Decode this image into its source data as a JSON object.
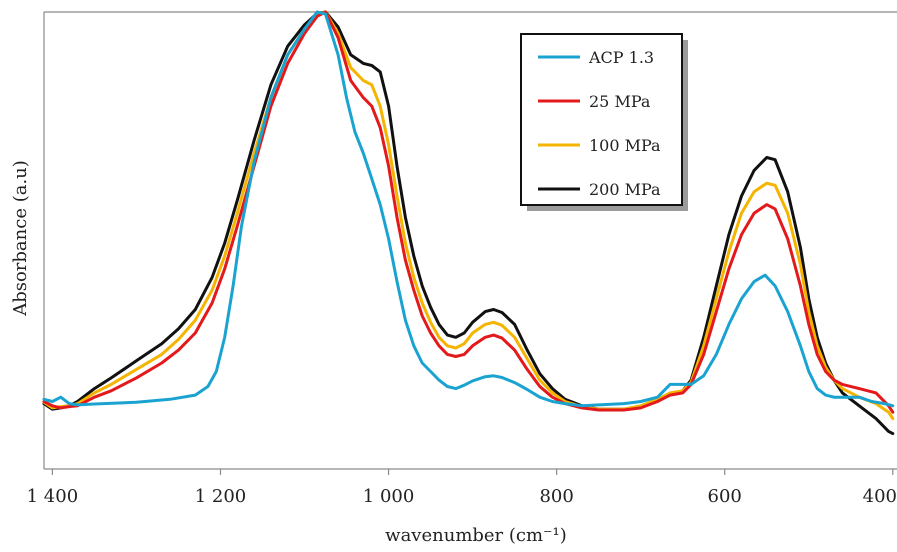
{
  "chart_data": {
    "type": "line",
    "title": "",
    "xlabel": "wavenumber (cm⁻¹)",
    "ylabel": "Absorbance (a.u)",
    "xlim": [
      1410,
      395
    ],
    "ylim": [
      0,
      1
    ],
    "x_reversed": true,
    "x_ticks": [
      1400,
      1200,
      1000,
      800,
      600,
      400
    ],
    "x_tick_labels": [
      "1 400",
      "1 200",
      "1 000",
      "800",
      "600",
      "400"
    ],
    "grid": false,
    "legend_placement": "top-right",
    "series": [
      {
        "name": "ACP 1.3",
        "color": "#1aa3d1",
        "points": [
          [
            1410,
            0.095
          ],
          [
            1400,
            0.09
          ],
          [
            1390,
            0.1
          ],
          [
            1380,
            0.085
          ],
          [
            1370,
            0.082
          ],
          [
            1350,
            0.084
          ],
          [
            1300,
            0.088
          ],
          [
            1260,
            0.095
          ],
          [
            1230,
            0.105
          ],
          [
            1215,
            0.125
          ],
          [
            1205,
            0.16
          ],
          [
            1195,
            0.24
          ],
          [
            1185,
            0.36
          ],
          [
            1175,
            0.5
          ],
          [
            1160,
            0.65
          ],
          [
            1140,
            0.8
          ],
          [
            1120,
            0.9
          ],
          [
            1100,
            0.96
          ],
          [
            1085,
            1.0
          ],
          [
            1075,
            0.995
          ],
          [
            1060,
            0.9
          ],
          [
            1050,
            0.8
          ],
          [
            1040,
            0.72
          ],
          [
            1030,
            0.67
          ],
          [
            1020,
            0.61
          ],
          [
            1010,
            0.55
          ],
          [
            1000,
            0.47
          ],
          [
            990,
            0.37
          ],
          [
            980,
            0.28
          ],
          [
            970,
            0.22
          ],
          [
            960,
            0.18
          ],
          [
            950,
            0.16
          ],
          [
            940,
            0.14
          ],
          [
            930,
            0.125
          ],
          [
            920,
            0.12
          ],
          [
            910,
            0.128
          ],
          [
            900,
            0.138
          ],
          [
            885,
            0.148
          ],
          [
            875,
            0.15
          ],
          [
            865,
            0.146
          ],
          [
            850,
            0.134
          ],
          [
            835,
            0.118
          ],
          [
            820,
            0.1
          ],
          [
            805,
            0.09
          ],
          [
            790,
            0.085
          ],
          [
            770,
            0.08
          ],
          [
            750,
            0.082
          ],
          [
            720,
            0.085
          ],
          [
            700,
            0.09
          ],
          [
            680,
            0.1
          ],
          [
            665,
            0.13
          ],
          [
            655,
            0.13
          ],
          [
            640,
            0.13
          ],
          [
            625,
            0.15
          ],
          [
            610,
            0.2
          ],
          [
            595,
            0.27
          ],
          [
            580,
            0.33
          ],
          [
            565,
            0.37
          ],
          [
            552,
            0.385
          ],
          [
            540,
            0.36
          ],
          [
            525,
            0.3
          ],
          [
            510,
            0.22
          ],
          [
            500,
            0.16
          ],
          [
            490,
            0.12
          ],
          [
            480,
            0.105
          ],
          [
            470,
            0.1
          ],
          [
            460,
            0.1
          ],
          [
            440,
            0.1
          ],
          [
            425,
            0.09
          ],
          [
            410,
            0.085
          ],
          [
            400,
            0.08
          ]
        ]
      },
      {
        "name": "25 MPa",
        "color": "#e3191c",
        "points": [
          [
            1410,
            0.09
          ],
          [
            1400,
            0.08
          ],
          [
            1390,
            0.075
          ],
          [
            1380,
            0.078
          ],
          [
            1370,
            0.08
          ],
          [
            1350,
            0.1
          ],
          [
            1330,
            0.115
          ],
          [
            1300,
            0.145
          ],
          [
            1270,
            0.18
          ],
          [
            1250,
            0.21
          ],
          [
            1230,
            0.25
          ],
          [
            1210,
            0.32
          ],
          [
            1195,
            0.4
          ],
          [
            1180,
            0.5
          ],
          [
            1160,
            0.64
          ],
          [
            1140,
            0.78
          ],
          [
            1120,
            0.88
          ],
          [
            1100,
            0.95
          ],
          [
            1085,
            0.99
          ],
          [
            1075,
            1.0
          ],
          [
            1060,
            0.94
          ],
          [
            1045,
            0.84
          ],
          [
            1030,
            0.8
          ],
          [
            1020,
            0.78
          ],
          [
            1010,
            0.73
          ],
          [
            1000,
            0.64
          ],
          [
            990,
            0.52
          ],
          [
            980,
            0.42
          ],
          [
            970,
            0.35
          ],
          [
            960,
            0.29
          ],
          [
            950,
            0.25
          ],
          [
            940,
            0.22
          ],
          [
            930,
            0.2
          ],
          [
            920,
            0.195
          ],
          [
            910,
            0.2
          ],
          [
            900,
            0.22
          ],
          [
            885,
            0.24
          ],
          [
            875,
            0.245
          ],
          [
            865,
            0.238
          ],
          [
            850,
            0.21
          ],
          [
            835,
            0.165
          ],
          [
            820,
            0.125
          ],
          [
            805,
            0.1
          ],
          [
            790,
            0.085
          ],
          [
            770,
            0.075
          ],
          [
            750,
            0.07
          ],
          [
            720,
            0.07
          ],
          [
            700,
            0.075
          ],
          [
            680,
            0.09
          ],
          [
            665,
            0.105
          ],
          [
            650,
            0.11
          ],
          [
            640,
            0.13
          ],
          [
            625,
            0.2
          ],
          [
            610,
            0.3
          ],
          [
            595,
            0.4
          ],
          [
            580,
            0.48
          ],
          [
            565,
            0.53
          ],
          [
            550,
            0.55
          ],
          [
            540,
            0.54
          ],
          [
            525,
            0.47
          ],
          [
            510,
            0.36
          ],
          [
            500,
            0.27
          ],
          [
            490,
            0.2
          ],
          [
            480,
            0.16
          ],
          [
            470,
            0.14
          ],
          [
            460,
            0.13
          ],
          [
            440,
            0.12
          ],
          [
            420,
            0.11
          ],
          [
            405,
            0.08
          ],
          [
            400,
            0.065
          ]
        ]
      },
      {
        "name": "100 MPa",
        "color": "#f5b400",
        "points": [
          [
            1410,
            0.088
          ],
          [
            1400,
            0.075
          ],
          [
            1390,
            0.078
          ],
          [
            1380,
            0.08
          ],
          [
            1370,
            0.085
          ],
          [
            1350,
            0.11
          ],
          [
            1330,
            0.13
          ],
          [
            1300,
            0.165
          ],
          [
            1270,
            0.2
          ],
          [
            1250,
            0.235
          ],
          [
            1230,
            0.28
          ],
          [
            1210,
            0.35
          ],
          [
            1195,
            0.43
          ],
          [
            1180,
            0.53
          ],
          [
            1160,
            0.67
          ],
          [
            1140,
            0.8
          ],
          [
            1120,
            0.9
          ],
          [
            1100,
            0.96
          ],
          [
            1085,
            0.995
          ],
          [
            1075,
            1.0
          ],
          [
            1060,
            0.95
          ],
          [
            1045,
            0.87
          ],
          [
            1030,
            0.84
          ],
          [
            1020,
            0.83
          ],
          [
            1010,
            0.78
          ],
          [
            1000,
            0.69
          ],
          [
            990,
            0.57
          ],
          [
            980,
            0.46
          ],
          [
            970,
            0.38
          ],
          [
            960,
            0.32
          ],
          [
            950,
            0.275
          ],
          [
            940,
            0.24
          ],
          [
            930,
            0.22
          ],
          [
            920,
            0.215
          ],
          [
            910,
            0.225
          ],
          [
            900,
            0.25
          ],
          [
            885,
            0.27
          ],
          [
            875,
            0.275
          ],
          [
            865,
            0.268
          ],
          [
            850,
            0.24
          ],
          [
            835,
            0.19
          ],
          [
            820,
            0.14
          ],
          [
            805,
            0.11
          ],
          [
            790,
            0.09
          ],
          [
            770,
            0.078
          ],
          [
            750,
            0.072
          ],
          [
            720,
            0.072
          ],
          [
            700,
            0.08
          ],
          [
            680,
            0.095
          ],
          [
            665,
            0.11
          ],
          [
            650,
            0.115
          ],
          [
            640,
            0.135
          ],
          [
            625,
            0.22
          ],
          [
            610,
            0.33
          ],
          [
            595,
            0.44
          ],
          [
            580,
            0.53
          ],
          [
            565,
            0.58
          ],
          [
            550,
            0.6
          ],
          [
            540,
            0.595
          ],
          [
            525,
            0.53
          ],
          [
            510,
            0.41
          ],
          [
            500,
            0.3
          ],
          [
            490,
            0.22
          ],
          [
            480,
            0.17
          ],
          [
            470,
            0.14
          ],
          [
            460,
            0.12
          ],
          [
            440,
            0.1
          ],
          [
            420,
            0.085
          ],
          [
            405,
            0.065
          ],
          [
            400,
            0.05
          ]
        ]
      },
      {
        "name": "200 MPa",
        "color": "#111111",
        "points": [
          [
            1410,
            0.085
          ],
          [
            1400,
            0.072
          ],
          [
            1390,
            0.075
          ],
          [
            1380,
            0.08
          ],
          [
            1370,
            0.09
          ],
          [
            1350,
            0.12
          ],
          [
            1330,
            0.145
          ],
          [
            1300,
            0.185
          ],
          [
            1270,
            0.225
          ],
          [
            1250,
            0.26
          ],
          [
            1230,
            0.305
          ],
          [
            1210,
            0.38
          ],
          [
            1195,
            0.46
          ],
          [
            1180,
            0.56
          ],
          [
            1160,
            0.7
          ],
          [
            1140,
            0.83
          ],
          [
            1120,
            0.92
          ],
          [
            1100,
            0.97
          ],
          [
            1085,
            0.997
          ],
          [
            1075,
            1.0
          ],
          [
            1060,
            0.965
          ],
          [
            1045,
            0.9
          ],
          [
            1030,
            0.88
          ],
          [
            1020,
            0.875
          ],
          [
            1010,
            0.86
          ],
          [
            1000,
            0.78
          ],
          [
            990,
            0.64
          ],
          [
            980,
            0.52
          ],
          [
            970,
            0.43
          ],
          [
            960,
            0.36
          ],
          [
            950,
            0.31
          ],
          [
            940,
            0.27
          ],
          [
            930,
            0.245
          ],
          [
            920,
            0.24
          ],
          [
            910,
            0.25
          ],
          [
            900,
            0.275
          ],
          [
            885,
            0.3
          ],
          [
            875,
            0.305
          ],
          [
            865,
            0.298
          ],
          [
            850,
            0.27
          ],
          [
            835,
            0.21
          ],
          [
            820,
            0.155
          ],
          [
            805,
            0.12
          ],
          [
            790,
            0.095
          ],
          [
            770,
            0.08
          ],
          [
            750,
            0.072
          ],
          [
            720,
            0.072
          ],
          [
            700,
            0.078
          ],
          [
            680,
            0.092
          ],
          [
            665,
            0.108
          ],
          [
            650,
            0.115
          ],
          [
            640,
            0.14
          ],
          [
            625,
            0.24
          ],
          [
            610,
            0.36
          ],
          [
            595,
            0.48
          ],
          [
            580,
            0.57
          ],
          [
            565,
            0.63
          ],
          [
            550,
            0.66
          ],
          [
            540,
            0.655
          ],
          [
            525,
            0.58
          ],
          [
            510,
            0.45
          ],
          [
            500,
            0.33
          ],
          [
            490,
            0.24
          ],
          [
            480,
            0.18
          ],
          [
            470,
            0.14
          ],
          [
            460,
            0.11
          ],
          [
            440,
            0.08
          ],
          [
            420,
            0.05
          ],
          [
            405,
            0.02
          ],
          [
            400,
            0.015
          ]
        ]
      }
    ]
  }
}
